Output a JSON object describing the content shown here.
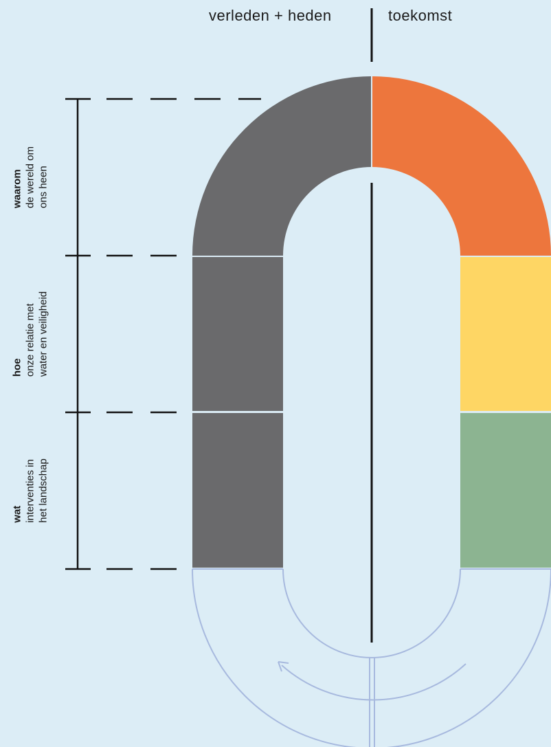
{
  "header": {
    "left": "verleden + heden",
    "right": "toekomst"
  },
  "levels": [
    {
      "title": "waarom",
      "line1": "de wereld om",
      "line2": "ons heen"
    },
    {
      "title": "hoe",
      "line1": "onze relatie met",
      "line2": "water en veiligheid"
    },
    {
      "title": "wat",
      "line1": "interventies in",
      "line2": "het landschap"
    }
  ],
  "colors": {
    "background": "#dcedf6",
    "past": "#6a6a6c",
    "why_future": "#ed763d",
    "how_future": "#fed664",
    "what_future": "#8cb491",
    "outline": "#a7b9de",
    "line": "#111111"
  },
  "icons": [
    "cycle-arrow-icon"
  ]
}
